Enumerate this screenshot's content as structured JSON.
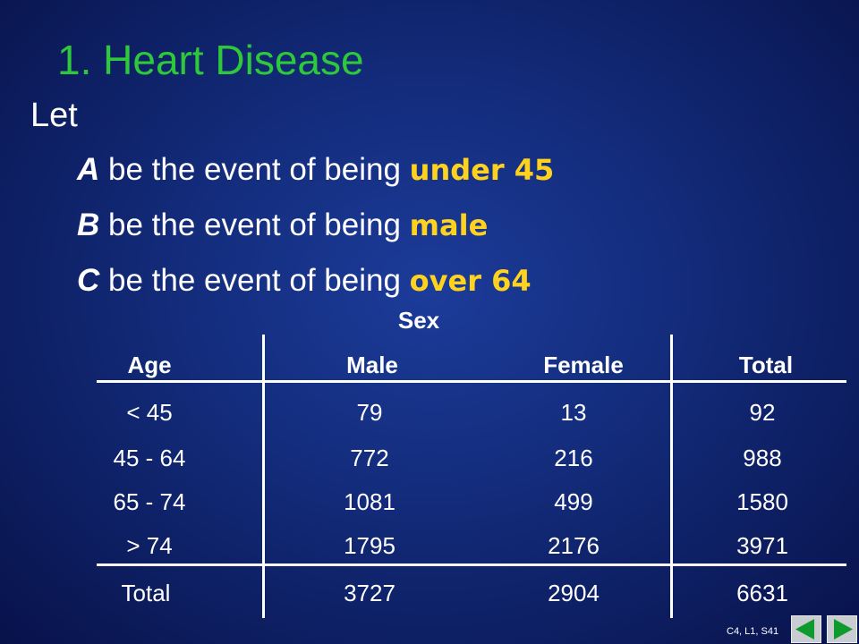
{
  "slide": {
    "title": "1.  Heart Disease",
    "intro": "Let",
    "events": [
      {
        "letter": "A",
        "text": " be the event of being ",
        "highlight": "under 45"
      },
      {
        "letter": "B",
        "text": " be the event of being ",
        "highlight": "male"
      },
      {
        "letter": "C",
        "text": " be the event of being ",
        "highlight": "over 64"
      }
    ],
    "highlight_color": "#ffd21e",
    "title_color": "#2ec83a"
  },
  "table": {
    "group_header": "Sex",
    "columns": [
      "Age",
      "Male",
      "Female",
      "Total"
    ],
    "rows": [
      [
        "< 45",
        "79",
        "13",
        "92"
      ],
      [
        "45 - 64",
        "772",
        "216",
        "988"
      ],
      [
        "65 - 74",
        "1081",
        "499",
        "1580"
      ],
      [
        "> 74",
        "1795",
        "2176",
        "3971"
      ]
    ],
    "totals": [
      "Total",
      "3727",
      "2904",
      "6631"
    ]
  },
  "footer": {
    "slide_number": "C4, L1, S41",
    "prev_icon": "arrow-left-icon",
    "next_icon": "arrow-right-icon",
    "nav_color": "#0f9a2e"
  }
}
